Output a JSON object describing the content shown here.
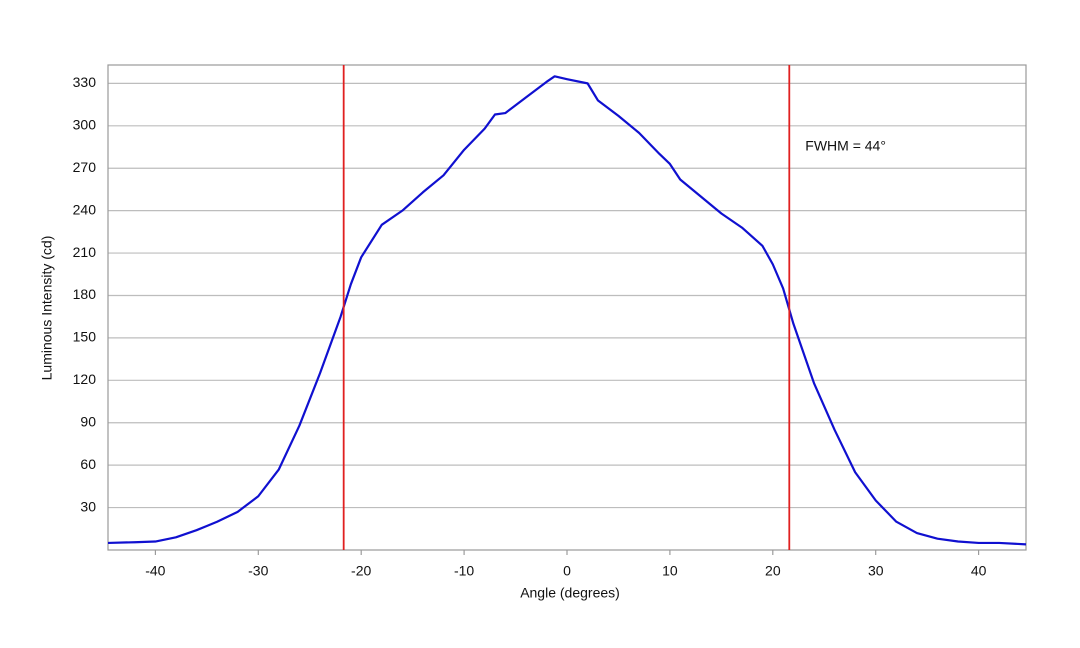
{
  "chart_data": {
    "type": "line",
    "x_label": "Angle (degrees)",
    "y_label": "Luminous Intensity (cd)",
    "x": [
      -44.6,
      -42,
      -40,
      -38,
      -36,
      -35,
      -34,
      -32,
      -30,
      -28,
      -26,
      -24,
      -22,
      -21,
      -20,
      -18,
      -16,
      -14,
      -12,
      -10,
      -8,
      -7,
      -6,
      -4,
      -2,
      -1.2,
      0,
      2,
      3,
      5,
      7,
      9,
      10,
      11,
      13,
      15,
      17,
      19,
      20,
      21,
      22,
      24,
      26,
      28,
      30,
      32,
      34,
      36,
      38,
      40,
      42,
      44.6
    ],
    "series": [
      {
        "color": "#1010d0",
        "values": [
          5,
          5.5,
          6,
          9,
          14,
          17,
          20,
          27,
          38,
          57,
          88,
          125,
          165,
          188,
          207,
          230,
          240,
          253,
          265,
          283,
          298,
          308,
          309,
          320,
          331,
          335,
          333,
          330,
          318,
          307,
          295,
          280,
          273,
          262,
          250,
          238,
          228,
          215,
          202,
          185,
          160,
          118,
          85,
          55,
          35,
          20,
          12,
          8,
          6,
          5,
          5,
          4
        ]
      }
    ],
    "vlines": [
      -21.7,
      21.6
    ],
    "vline_color": "#e02020",
    "annotation": "FWHM = 44°",
    "xlim": [
      -44.6,
      44.6
    ],
    "xticks": [
      -40,
      -30,
      -20,
      -10,
      0,
      10,
      20,
      30,
      40
    ],
    "ylim": [
      0,
      343
    ],
    "yticks": [
      30,
      60,
      90,
      120,
      150,
      180,
      210,
      240,
      270,
      300,
      330
    ],
    "grid": true
  }
}
